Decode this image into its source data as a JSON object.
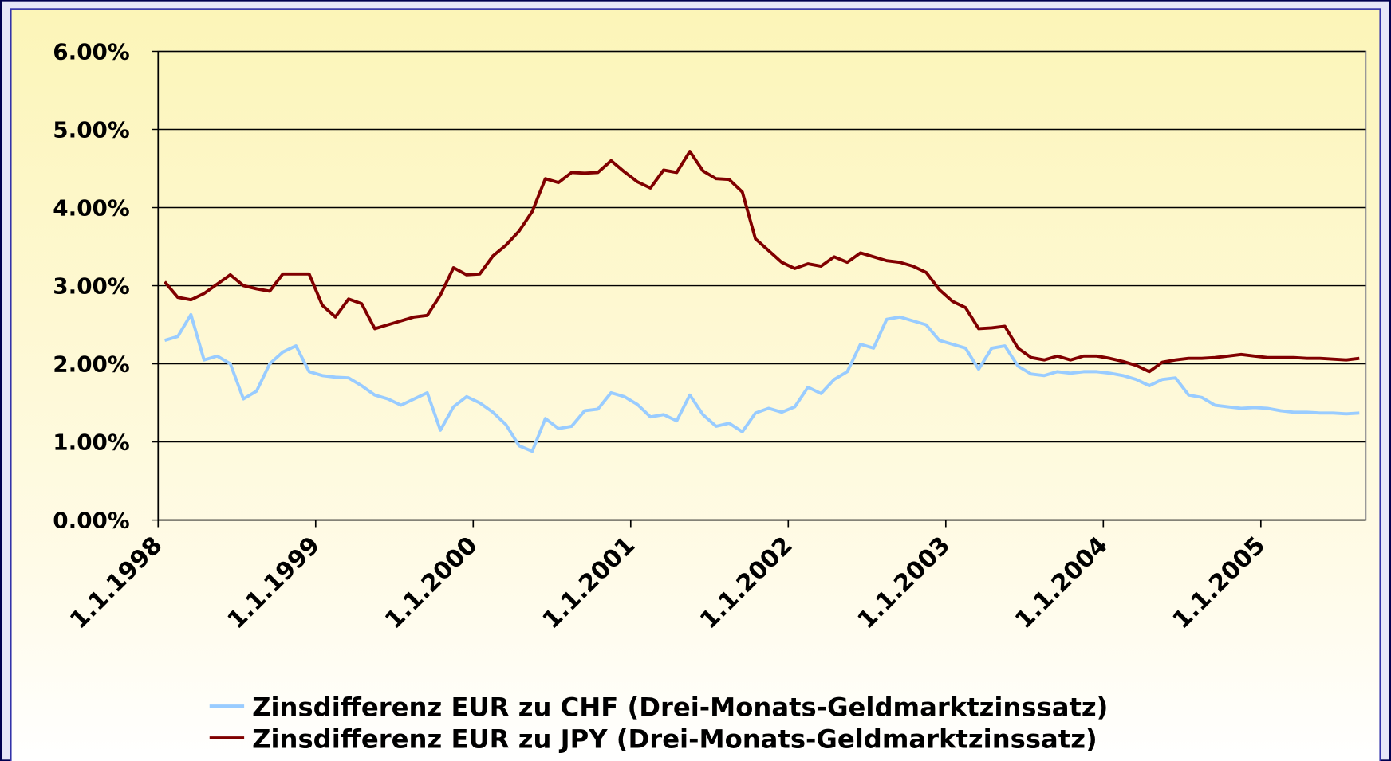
{
  "chart_data": {
    "type": "line",
    "categories": [
      "1.1.1998",
      null,
      null,
      null,
      null,
      null,
      null,
      null,
      null,
      null,
      null,
      null,
      "1.1.1999",
      null,
      null,
      null,
      null,
      null,
      null,
      null,
      null,
      null,
      null,
      null,
      "1.1.2000",
      null,
      null,
      null,
      null,
      null,
      null,
      null,
      null,
      null,
      null,
      null,
      "1.1.2001",
      null,
      null,
      null,
      null,
      null,
      null,
      null,
      null,
      null,
      null,
      null,
      "1.1.2002",
      null,
      null,
      null,
      null,
      null,
      null,
      null,
      null,
      null,
      null,
      null,
      "1.1.2003",
      null,
      null,
      null,
      null,
      null,
      null,
      null,
      null,
      null,
      null,
      null,
      "1.1.2004",
      null,
      null,
      null,
      null,
      null,
      null,
      null,
      null,
      null,
      null,
      null,
      "1.1.2005",
      null,
      null,
      null,
      null,
      null,
      null,
      null
    ],
    "series": [
      {
        "name": "Zinsdifferenz EUR zu CHF (Drei-Monats-Geldmarktzinssatz)",
        "color": "#99ccff",
        "values": [
          2.3,
          2.35,
          2.63,
          2.05,
          2.1,
          2.0,
          1.55,
          1.65,
          2.0,
          2.15,
          2.23,
          1.9,
          1.85,
          1.83,
          1.82,
          1.72,
          1.6,
          1.55,
          1.47,
          1.55,
          1.63,
          1.15,
          1.45,
          1.58,
          1.5,
          1.38,
          1.22,
          0.95,
          0.88,
          1.3,
          1.17,
          1.2,
          1.4,
          1.42,
          1.63,
          1.58,
          1.48,
          1.32,
          1.35,
          1.27,
          1.6,
          1.35,
          1.2,
          1.24,
          1.13,
          1.37,
          1.43,
          1.38,
          1.45,
          1.7,
          1.62,
          1.8,
          1.9,
          2.25,
          2.2,
          2.57,
          2.6,
          2.55,
          2.5,
          2.3,
          2.25,
          2.2,
          1.93,
          2.2,
          2.23,
          1.97,
          1.87,
          1.85,
          1.9,
          1.88,
          1.9,
          1.9,
          1.88,
          1.85,
          1.8,
          1.72,
          1.8,
          1.82,
          1.6,
          1.57,
          1.47,
          1.45,
          1.43,
          1.44,
          1.43,
          1.4,
          1.38,
          1.38,
          1.37,
          1.37,
          1.36,
          1.37
        ]
      },
      {
        "name": "Zinsdifferenz EUR zu JPY (Drei-Monats-Geldmarktzinssatz)",
        "color": "#800000",
        "values": [
          3.05,
          2.85,
          2.82,
          2.9,
          3.02,
          3.14,
          3.0,
          2.96,
          2.93,
          3.15,
          3.15,
          3.15,
          2.75,
          2.6,
          2.83,
          2.77,
          2.45,
          2.5,
          2.55,
          2.6,
          2.62,
          2.88,
          3.23,
          3.14,
          3.15,
          3.38,
          3.52,
          3.7,
          3.95,
          4.37,
          4.32,
          4.45,
          4.44,
          4.45,
          4.6,
          4.46,
          4.33,
          4.25,
          4.48,
          4.45,
          4.72,
          4.47,
          4.37,
          4.36,
          4.2,
          3.6,
          3.45,
          3.3,
          3.22,
          3.28,
          3.25,
          3.37,
          3.3,
          3.42,
          3.37,
          3.32,
          3.3,
          3.25,
          3.17,
          2.95,
          2.8,
          2.72,
          2.45,
          2.46,
          2.48,
          2.2,
          2.08,
          2.05,
          2.1,
          2.05,
          2.1,
          2.1,
          2.07,
          2.03,
          1.98,
          1.9,
          2.02,
          2.05,
          2.07,
          2.07,
          2.08,
          2.1,
          2.12,
          2.1,
          2.08,
          2.08,
          2.08,
          2.07,
          2.07,
          2.06,
          2.05,
          2.07
        ]
      }
    ],
    "ylim": [
      0,
      6
    ],
    "yticks": [
      {
        "value": 0,
        "label": "0.00%"
      },
      {
        "value": 1,
        "label": "1.00%"
      },
      {
        "value": 2,
        "label": "2.00%"
      },
      {
        "value": 3,
        "label": "3.00%"
      },
      {
        "value": 4,
        "label": "4.00%"
      },
      {
        "value": 5,
        "label": "5.00%"
      },
      {
        "value": 6,
        "label": "6.00%"
      }
    ],
    "grid": true
  }
}
